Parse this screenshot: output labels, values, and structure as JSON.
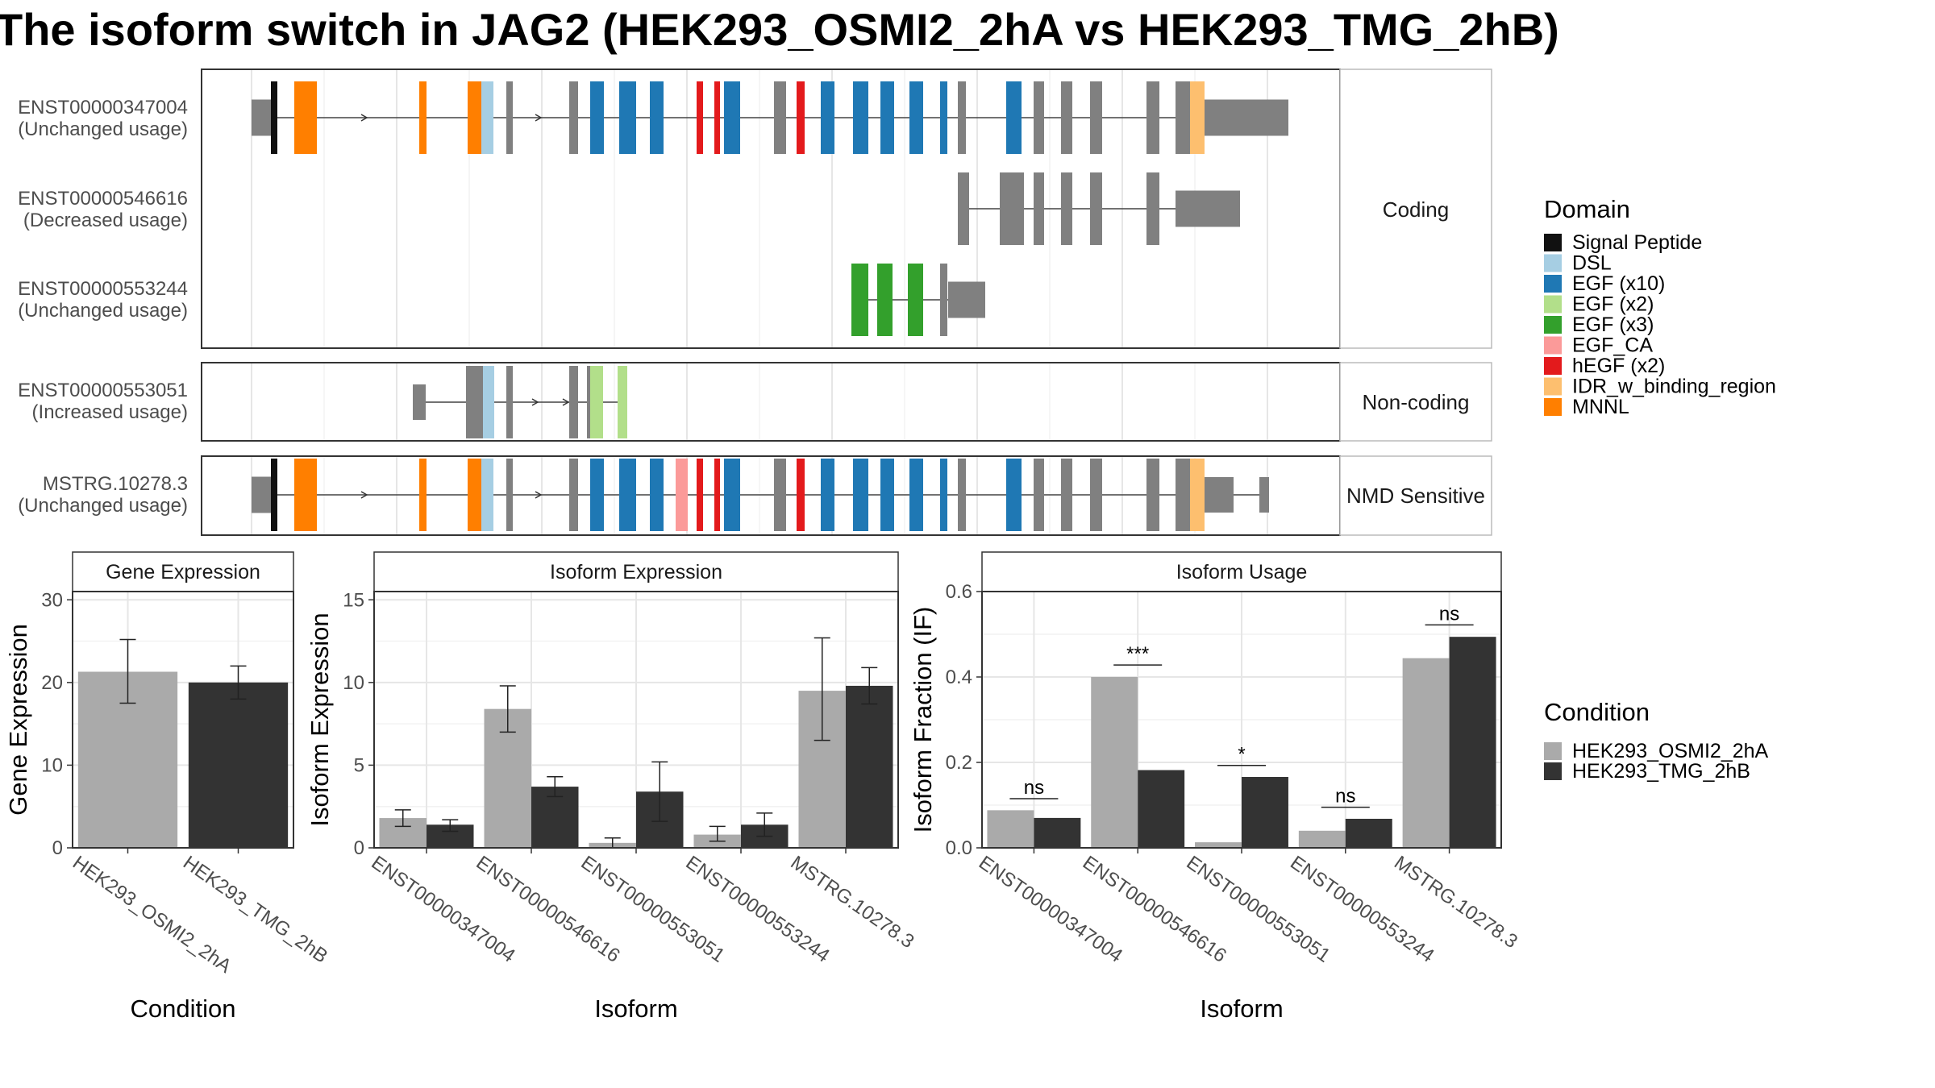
{
  "title": "The isoform switch in JAG2 (HEK293_OSMI2_2hA vs HEK293_TMG_2hB)",
  "colors": {
    "Signal Peptide": "#111111",
    "DSL": "#a6cee3",
    "EGF (x10)": "#1f78b4",
    "EGF (x2)": "#b2df8a",
    "EGF (x3)": "#33a02c",
    "EGF_CA": "#fb9a99",
    "hEGF (x2)": "#e31a1c",
    "IDR_w_binding_region": "#fdbf6f",
    "MNNL": "#ff7f00",
    "exon": "#808080",
    "cond_a": "#aaaaaa",
    "cond_b": "#333333"
  },
  "structure": {
    "panels": [
      {
        "strip": "Coding",
        "transcripts": [
          {
            "id": "ENST00000347004",
            "usage": "(Unchanged usage)",
            "row": "t1"
          },
          {
            "id": "ENST00000546616",
            "usage": "(Decreased usage)",
            "row": "t2"
          },
          {
            "id": "ENST00000553244",
            "usage": "(Unchanged usage)",
            "row": "t3"
          }
        ]
      },
      {
        "strip": "Non-coding",
        "transcripts": [
          {
            "id": "ENST00000553051",
            "usage": "(Increased usage)",
            "row": "t4"
          }
        ]
      },
      {
        "strip": "NMD Sensitive",
        "transcripts": [
          {
            "id": "MSTRG.10278.3",
            "usage": "(Unchanged usage)",
            "row": "t5"
          }
        ]
      }
    ]
  },
  "legend_domain": {
    "title": "Domain",
    "items": [
      "Signal Peptide",
      "DSL",
      "EGF (x10)",
      "EGF (x2)",
      "EGF (x3)",
      "EGF_CA",
      "hEGF (x2)",
      "IDR_w_binding_region",
      "MNNL"
    ]
  },
  "legend_condition": {
    "title": "Condition",
    "items": [
      "HEK293_OSMI2_2hA",
      "HEK293_TMG_2hB"
    ]
  },
  "chart_data": [
    {
      "type": "bar",
      "strip": "Gene Expression",
      "xlabel": "Condition",
      "ylabel": "Gene Expression",
      "categories": [
        "HEK293_OSMI2_2hA",
        "HEK293_TMG_2hB"
      ],
      "values": [
        21.3,
        20.0
      ],
      "error": [
        [
          17.5,
          25.2
        ],
        [
          18.0,
          22.0
        ]
      ],
      "ylim": [
        0,
        31
      ],
      "yticks": [
        0,
        10,
        20,
        30
      ],
      "grid": true
    },
    {
      "type": "bar",
      "strip": "Isoform Expression",
      "xlabel": "Isoform",
      "ylabel": "Isoform Expression",
      "categories": [
        "ENST00000347004",
        "ENST00000546616",
        "ENST00000553051",
        "ENST00000553244",
        "MSTRG.10278.3"
      ],
      "series": [
        {
          "name": "HEK293_OSMI2_2hA",
          "values": [
            1.8,
            8.4,
            0.3,
            0.8,
            9.5
          ],
          "error": [
            [
              1.3,
              2.3
            ],
            [
              7.0,
              9.8
            ],
            [
              0.0,
              0.6
            ],
            [
              0.4,
              1.3
            ],
            [
              6.5,
              12.7
            ]
          ]
        },
        {
          "name": "HEK293_TMG_2hB",
          "values": [
            1.4,
            3.7,
            3.4,
            1.4,
            9.8
          ],
          "error": [
            [
              1.0,
              1.7
            ],
            [
              3.1,
              4.3
            ],
            [
              1.6,
              5.2
            ],
            [
              0.7,
              2.1
            ],
            [
              8.7,
              10.9
            ]
          ]
        }
      ],
      "ylim": [
        0,
        15.5
      ],
      "yticks": [
        0,
        5,
        10,
        15
      ],
      "grid": true
    },
    {
      "type": "bar",
      "strip": "Isoform Usage",
      "xlabel": "Isoform",
      "ylabel": "Isoform Fraction (IF)",
      "categories": [
        "ENST00000347004",
        "ENST00000546616",
        "ENST00000553051",
        "ENST00000553244",
        "MSTRG.10278.3"
      ],
      "series": [
        {
          "name": "HEK293_OSMI2_2hA",
          "values": [
            0.088,
            0.4,
            0.013,
            0.04,
            0.444
          ]
        },
        {
          "name": "HEK293_TMG_2hB",
          "values": [
            0.07,
            0.182,
            0.166,
            0.068,
            0.494
          ]
        }
      ],
      "significance": [
        {
          "label": "ns",
          "y": 0.115
        },
        {
          "label": "***",
          "y": 0.428
        },
        {
          "label": "*",
          "y": 0.193
        },
        {
          "label": "ns",
          "y": 0.095
        },
        {
          "label": "ns",
          "y": 0.522
        }
      ],
      "ylim": [
        0,
        0.6
      ],
      "yticks": [
        0.0,
        0.2,
        0.4,
        0.6
      ],
      "yticklabels": [
        "0.0",
        "0.2",
        "0.4",
        "0.6"
      ],
      "grid": true
    }
  ]
}
